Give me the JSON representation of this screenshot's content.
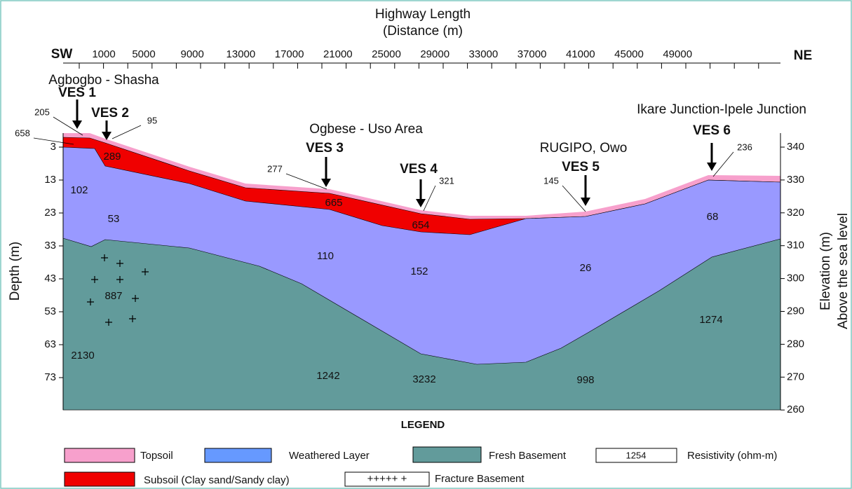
{
  "header": {
    "title": "Highway Length",
    "subtitle": "(Distance (m)"
  },
  "top_axis": {
    "left_end": "SW",
    "right_end": "NE",
    "ticks": [
      1000,
      5000,
      9000,
      13000,
      17000,
      21000,
      25000,
      29000,
      33000,
      37000,
      41000,
      45000,
      49000
    ]
  },
  "left_axis": {
    "label": "Depth (m)",
    "ticks": [
      3,
      13,
      23,
      33,
      43,
      53,
      63,
      73
    ]
  },
  "right_axis": {
    "label": "Elevation (m)",
    "label2": "Above the sea level",
    "ticks": [
      340,
      330,
      320,
      310,
      300,
      290,
      280,
      270,
      260
    ]
  },
  "places": [
    "Agbogbo - Shasha",
    "Ogbese - Uso Area",
    "RUGIPO, Owo",
    "Ikare Junction-Ipele Junction"
  ],
  "ves": [
    "VES 1",
    "VES 2",
    "VES 3",
    "VES 4",
    "VES 5",
    "VES 6"
  ],
  "resistivity": [
    205,
    658,
    95,
    289,
    102,
    53,
    887,
    2130,
    277,
    665,
    110,
    1242,
    654,
    321,
    152,
    3232,
    145,
    26,
    998,
    236,
    68,
    1274
  ],
  "legend": {
    "title": "LEGEND",
    "items": [
      "Topsoil",
      "Weathered Layer",
      "Fresh Basement",
      "Resistivity (ohm-m)",
      "Subsoil (Clay sand/Sandy clay)",
      "Fracture Basement"
    ],
    "sample_resistivity": 1254,
    "fracture_symbol": "+++++ +"
  }
}
